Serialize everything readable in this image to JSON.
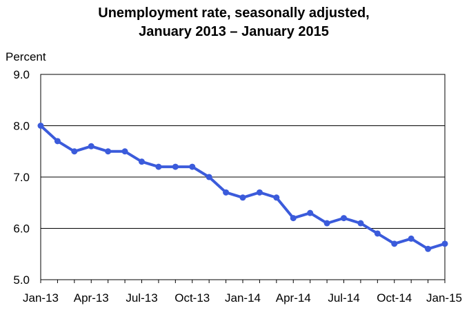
{
  "chart_data": {
    "type": "line",
    "title": "Unemployment rate, seasonally adjusted,",
    "subtitle": "January 2013 – January 2015",
    "ylabel": "Percent",
    "xlabel": "",
    "ylim": [
      5.0,
      9.0
    ],
    "yticks": [
      "5.0",
      "6.0",
      "7.0",
      "8.0",
      "9.0"
    ],
    "xticks": [
      "Jan-13",
      "Apr-13",
      "Jul-13",
      "Oct-13",
      "Jan-14",
      "Apr-14",
      "Jul-14",
      "Oct-14",
      "Jan-15"
    ],
    "grid": true,
    "line_color": "#3b5bdb",
    "categories": [
      "Jan-13",
      "Feb-13",
      "Mar-13",
      "Apr-13",
      "May-13",
      "Jun-13",
      "Jul-13",
      "Aug-13",
      "Sep-13",
      "Oct-13",
      "Nov-13",
      "Dec-13",
      "Jan-14",
      "Feb-14",
      "Mar-14",
      "Apr-14",
      "May-14",
      "Jun-14",
      "Jul-14",
      "Aug-14",
      "Sep-14",
      "Oct-14",
      "Nov-14",
      "Dec-14",
      "Jan-15"
    ],
    "values": [
      8.0,
      7.7,
      7.5,
      7.6,
      7.5,
      7.5,
      7.3,
      7.2,
      7.2,
      7.2,
      7.0,
      6.7,
      6.6,
      6.7,
      6.6,
      6.2,
      6.3,
      6.1,
      6.2,
      6.1,
      5.9,
      5.7,
      5.8,
      5.6,
      5.7
    ]
  }
}
